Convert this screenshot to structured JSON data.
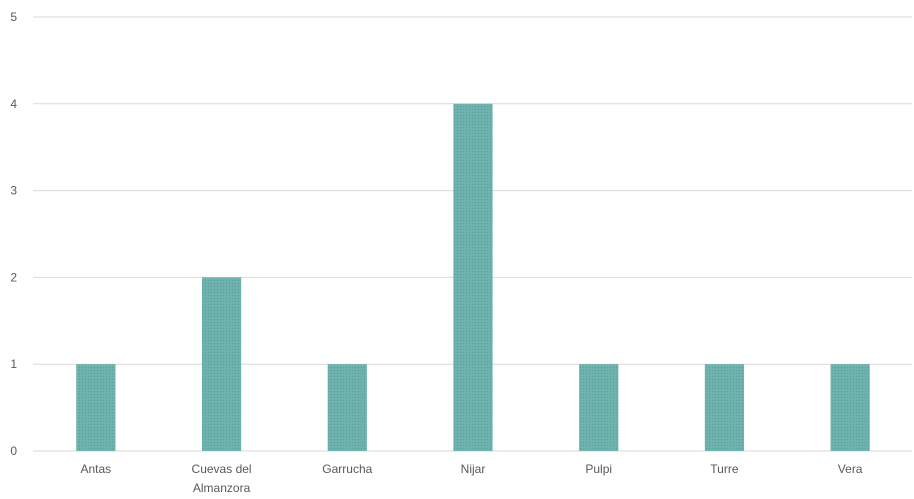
{
  "chart_data": {
    "type": "bar",
    "categories": [
      [
        "Antas"
      ],
      [
        "Cuevas del",
        "Almanzora"
      ],
      [
        "Garrucha"
      ],
      [
        "Nijar"
      ],
      [
        "Pulpi"
      ],
      [
        "Turre"
      ],
      [
        "Vera"
      ]
    ],
    "values": [
      1,
      2,
      1,
      4,
      1,
      1,
      1
    ],
    "ylim": [
      0,
      5
    ],
    "yticks": [
      "0",
      "1",
      "2",
      "3",
      "4",
      "5"
    ],
    "title": "",
    "xlabel": "",
    "ylabel": "",
    "grid": true,
    "legend": "none",
    "colors": {
      "bar": "#6fb3ae",
      "grid": "#d9d9d9",
      "text": "#595959"
    }
  }
}
